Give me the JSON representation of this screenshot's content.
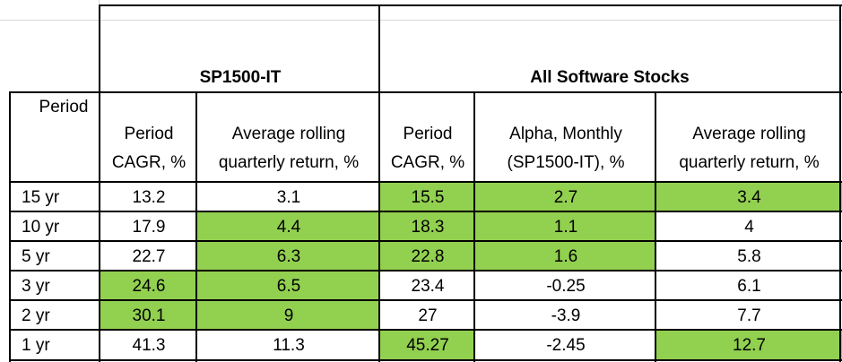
{
  "groups": {
    "sp1500": "SP1500-IT",
    "software": "All Software Stocks"
  },
  "columns": {
    "period": "Period",
    "sp_cagr_1": "Period",
    "sp_cagr_2": "CAGR, %",
    "sp_roll_1": "Average rolling",
    "sp_roll_2": "quarterly return, %",
    "sw_cagr_1": "Period",
    "sw_cagr_2": "CAGR, %",
    "sw_alpha_1": "Alpha, Monthly",
    "sw_alpha_2": "(SP1500-IT), %",
    "sw_roll_1": "Average rolling",
    "sw_roll_2": "quarterly return, %"
  },
  "rows": [
    {
      "period": "15 yr",
      "sp_cagr": "13.2",
      "sp_roll": "3.1",
      "sw_cagr": "15.5",
      "sw_alpha": "2.7",
      "sw_roll": "3.4"
    },
    {
      "period": "10 yr",
      "sp_cagr": "17.9",
      "sp_roll": "4.4",
      "sw_cagr": "18.3",
      "sw_alpha": "1.1",
      "sw_roll": "4"
    },
    {
      "period": "5 yr",
      "sp_cagr": "22.7",
      "sp_roll": "6.3",
      "sw_cagr": "22.8",
      "sw_alpha": "1.6",
      "sw_roll": "5.8"
    },
    {
      "period": "3 yr",
      "sp_cagr": "24.6",
      "sp_roll": "6.5",
      "sw_cagr": "23.4",
      "sw_alpha": "-0.25",
      "sw_roll": "6.1"
    },
    {
      "period": "2 yr",
      "sp_cagr": "30.1",
      "sp_roll": "9",
      "sw_cagr": "27",
      "sw_alpha": "-3.9",
      "sw_roll": "7.7"
    },
    {
      "period": "1 yr",
      "sp_cagr": "41.3",
      "sp_roll": "11.3",
      "sw_cagr": "45.27",
      "sw_alpha": "-2.45",
      "sw_roll": "12.7"
    }
  ],
  "highlight_color": "#92d050"
}
